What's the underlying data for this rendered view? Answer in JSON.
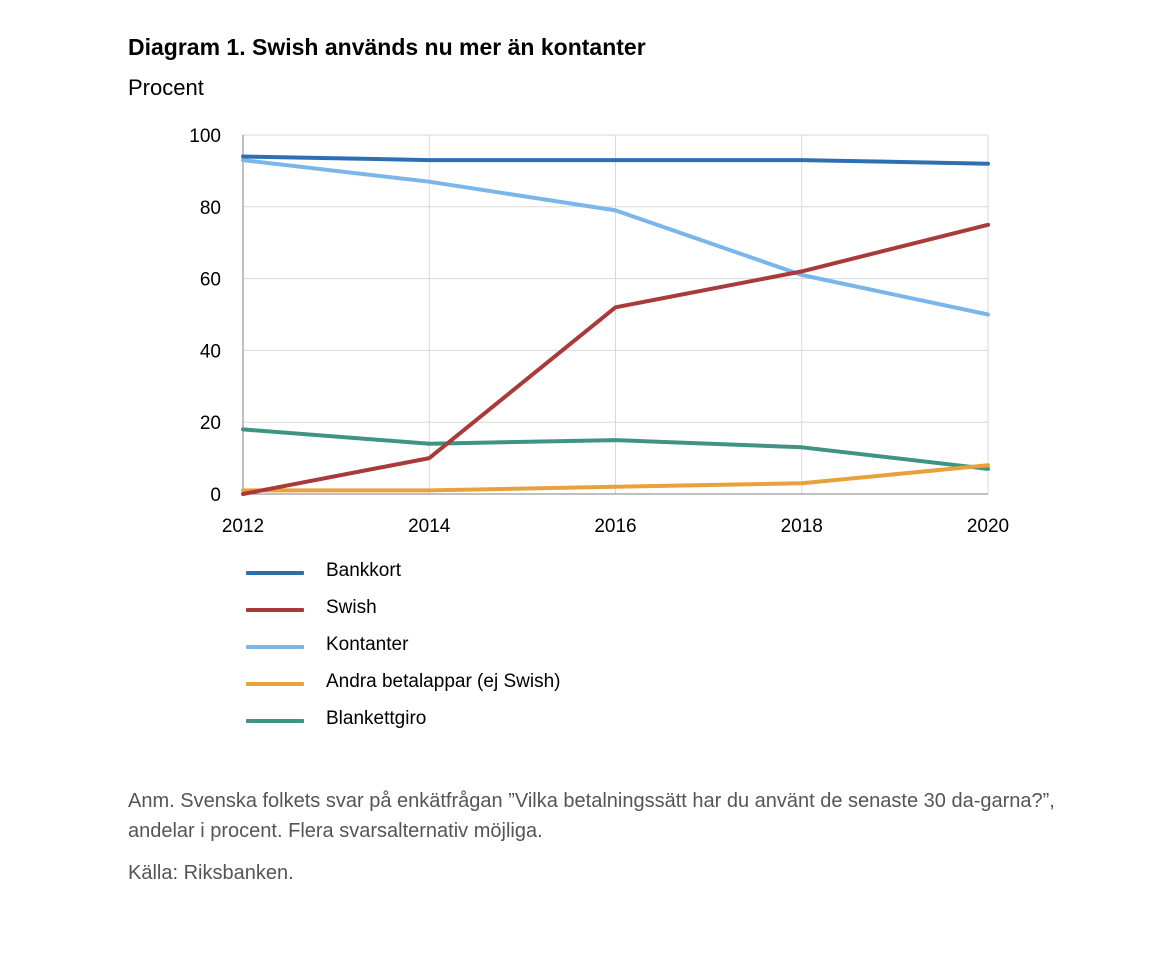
{
  "title": "Diagram 1. Swish används nu mer än kontanter",
  "subtitle": "Procent",
  "note": "Anm. Svenska folkets svar på enkätfrågan ”Vilka betalningssätt har du använt de senaste 30 da-garna?”, andelar i procent. Flera svarsalternativ möjliga.",
  "source": "Källa: Riksbanken.",
  "chart_data": {
    "type": "line",
    "title": "Diagram 1. Swish används nu mer än kontanter",
    "ylabel": "Procent",
    "xlabel": "",
    "x": [
      2012,
      2014,
      2016,
      2018,
      2020
    ],
    "xlim": [
      2012,
      2020
    ],
    "ylim": [
      0,
      100
    ],
    "xticks": [
      "2012",
      "2014",
      "2016",
      "2018",
      "2020"
    ],
    "yticks": [
      "0",
      "20",
      "40",
      "60",
      "80",
      "100"
    ],
    "grid": true,
    "legend_position": "bottom",
    "series": [
      {
        "name": "Bankkort",
        "color": "#2e6fb2",
        "values": [
          94,
          93,
          93,
          93,
          92
        ]
      },
      {
        "name": "Swish",
        "color": "#a83a3a",
        "values": [
          0,
          10,
          52,
          62,
          75
        ]
      },
      {
        "name": "Kontanter",
        "color": "#7ab6ea",
        "values": [
          93,
          87,
          79,
          61,
          50
        ]
      },
      {
        "name": "Andra betalappar (ej Swish)",
        "color": "#e9a23b",
        "values": [
          1,
          1,
          2,
          3,
          8
        ]
      },
      {
        "name": "Blankettgiro",
        "color": "#3f9382",
        "values": [
          18,
          14,
          15,
          13,
          7
        ]
      }
    ]
  }
}
